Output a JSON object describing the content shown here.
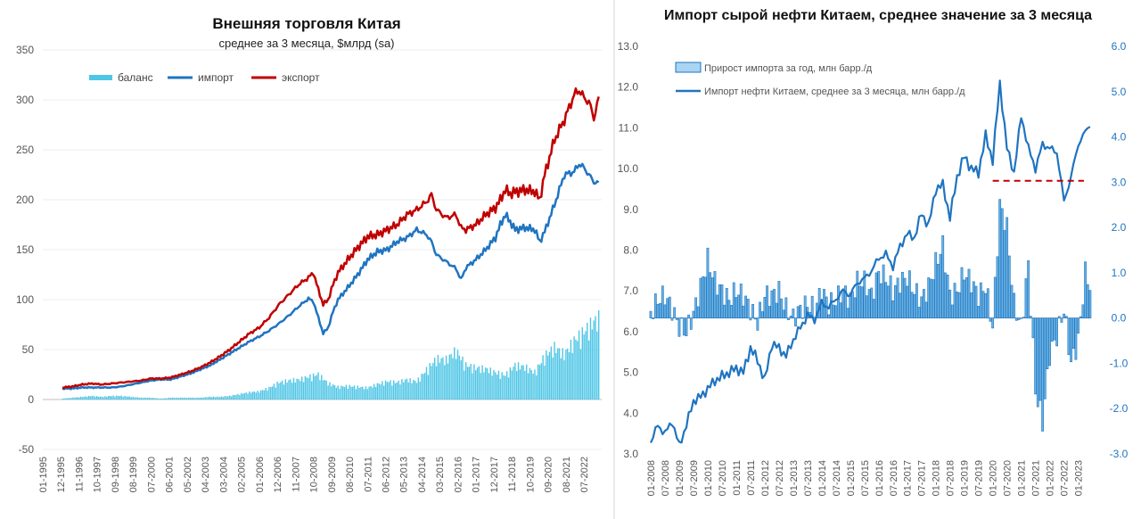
{
  "chart_data": [
    {
      "type": "line",
      "title": "Внешняя торговля Китая",
      "subtitle": "среднее за 3 месяца, $млрд (sa)",
      "xlabel": "",
      "ylabel": "",
      "ylim": [
        -50,
        350
      ],
      "yticks": [
        -50,
        0,
        50,
        100,
        150,
        200,
        250,
        300,
        350
      ],
      "xlim": [
        1995.0,
        2023.4
      ],
      "x_tick_labels": [
        "01-1995",
        "12-1995",
        "11-1996",
        "10-1997",
        "09-1998",
        "08-1999",
        "07-2000",
        "06-2001",
        "05-2002",
        "04-2003",
        "03-2004",
        "02-2005",
        "01-2006",
        "12-2006",
        "11-2007",
        "10-2008",
        "09-2009",
        "08-2010",
        "07-2011",
        "06-2012",
        "05-2013",
        "04-2014",
        "03-2015",
        "02-2016",
        "01-2017",
        "12-2017",
        "11-2018",
        "10-2019",
        "09-2020",
        "08-2021",
        "07-2022"
      ],
      "x_tick_values": [
        1995.0,
        1995.917,
        1996.833,
        1997.75,
        1998.667,
        1999.583,
        2000.5,
        2001.417,
        2002.333,
        2003.25,
        2004.167,
        2005.083,
        2006.0,
        2006.917,
        2007.833,
        2008.75,
        2009.667,
        2010.583,
        2011.5,
        2012.417,
        2013.333,
        2014.25,
        2015.167,
        2016.083,
        2017.0,
        2017.917,
        2018.833,
        2019.75,
        2020.667,
        2021.583,
        2022.5
      ],
      "legend": {
        "position": "top-left",
        "entries": [
          "баланс",
          "импорт",
          "экспорт"
        ]
      },
      "series": [
        {
          "name": "импорт",
          "color": "#1f74c0",
          "x": [
            1996.0,
            1996.5,
            1997.0,
            1997.5,
            1998.0,
            1998.5,
            1999.0,
            1999.5,
            2000.0,
            2000.5,
            2001.0,
            2001.5,
            2002.0,
            2002.5,
            2003.0,
            2003.5,
            2004.0,
            2004.5,
            2005.0,
            2005.5,
            2006.0,
            2006.5,
            2007.0,
            2007.5,
            2008.0,
            2008.5,
            2008.75,
            2009.0,
            2009.25,
            2009.5,
            2009.75,
            2010.0,
            2010.5,
            2011.0,
            2011.5,
            2012.0,
            2012.5,
            2013.0,
            2013.5,
            2014.0,
            2014.5,
            2014.75,
            2015.0,
            2015.5,
            2016.0,
            2016.25,
            2016.5,
            2017.0,
            2017.5,
            2018.0,
            2018.25,
            2018.5,
            2018.75,
            2019.0,
            2019.5,
            2020.0,
            2020.25,
            2020.5,
            2021.0,
            2021.5,
            2022.0,
            2022.25,
            2022.5,
            2022.75,
            2023.0,
            2023.3
          ],
          "values": [
            11,
            11,
            12,
            12,
            12,
            12,
            13,
            15,
            17,
            19,
            20,
            20,
            23,
            26,
            30,
            34,
            40,
            46,
            52,
            58,
            63,
            69,
            76,
            84,
            93,
            101,
            98,
            82,
            66,
            72,
            88,
            100,
            112,
            125,
            140,
            148,
            150,
            158,
            162,
            170,
            165,
            158,
            145,
            138,
            131,
            120,
            132,
            140,
            150,
            162,
            175,
            185,
            178,
            170,
            172,
            170,
            158,
            168,
            195,
            225,
            228,
            236,
            232,
            225,
            218,
            216
          ]
        },
        {
          "name": "экспорт",
          "color": "#c00000",
          "x": [
            1996.0,
            1996.5,
            1997.0,
            1997.5,
            1998.0,
            1998.5,
            1999.0,
            1999.5,
            2000.0,
            2000.5,
            2001.0,
            2001.5,
            2002.0,
            2002.5,
            2003.0,
            2003.5,
            2004.0,
            2004.5,
            2005.0,
            2005.5,
            2006.0,
            2006.5,
            2007.0,
            2007.5,
            2008.0,
            2008.5,
            2008.75,
            2009.0,
            2009.25,
            2009.5,
            2009.75,
            2010.0,
            2010.5,
            2011.0,
            2011.5,
            2012.0,
            2012.5,
            2013.0,
            2013.5,
            2014.0,
            2014.5,
            2014.75,
            2015.0,
            2015.5,
            2016.0,
            2016.25,
            2016.5,
            2017.0,
            2017.5,
            2018.0,
            2018.25,
            2018.5,
            2018.75,
            2019.0,
            2019.5,
            2020.0,
            2020.25,
            2020.5,
            2021.0,
            2021.5,
            2022.0,
            2022.25,
            2022.5,
            2022.75,
            2023.0,
            2023.3
          ],
          "values": [
            12,
            13,
            15,
            16,
            15,
            16,
            17,
            18,
            19,
            21,
            21,
            22,
            25,
            28,
            32,
            37,
            43,
            50,
            58,
            66,
            72,
            82,
            95,
            105,
            115,
            122,
            127,
            110,
            95,
            100,
            115,
            127,
            140,
            152,
            163,
            165,
            170,
            175,
            185,
            190,
            198,
            205,
            190,
            182,
            185,
            172,
            170,
            175,
            185,
            192,
            200,
            210,
            206,
            208,
            210,
            208,
            200,
            225,
            260,
            280,
            305,
            310,
            302,
            298,
            282,
            305
          ]
        },
        {
          "name": "баланс",
          "color": "#4ec6e6",
          "x": [
            1996.0,
            1996.5,
            1997.0,
            1997.5,
            1998.0,
            1998.5,
            1999.0,
            1999.5,
            2000.0,
            2000.5,
            2001.0,
            2001.5,
            2002.0,
            2002.5,
            2003.0,
            2003.5,
            2004.0,
            2004.5,
            2005.0,
            2005.5,
            2006.0,
            2006.5,
            2007.0,
            2007.5,
            2008.0,
            2008.5,
            2009.0,
            2009.5,
            2010.0,
            2010.5,
            2011.0,
            2011.5,
            2012.0,
            2012.5,
            2013.0,
            2013.5,
            2014.0,
            2014.5,
            2015.0,
            2015.5,
            2016.0,
            2016.5,
            2017.0,
            2017.5,
            2018.0,
            2018.5,
            2019.0,
            2019.5,
            2020.0,
            2020.5,
            2021.0,
            2021.5,
            2022.0,
            2022.5,
            2023.0,
            2023.3
          ],
          "values": [
            1,
            2,
            3,
            4,
            3,
            4,
            4,
            3,
            2,
            2,
            1,
            2,
            2,
            2,
            2,
            3,
            3,
            4,
            6,
            8,
            9,
            13,
            19,
            21,
            22,
            25,
            28,
            18,
            14,
            15,
            14,
            13,
            17,
            20,
            19,
            22,
            20,
            33,
            45,
            44,
            54,
            38,
            35,
            34,
            30,
            27,
            38,
            36,
            30,
            48,
            58,
            50,
            65,
            75,
            86,
            90
          ]
        }
      ]
    },
    {
      "type": "bar+line",
      "title": "Импорт сырой нефти Китаем, среднее значение за 3 месяца",
      "xlabel": "",
      "ylabel": "",
      "ylim_left": [
        3.0,
        13.0
      ],
      "yticks_left": [
        "3.0",
        "4.0",
        "5.0",
        "6.0",
        "7.0",
        "8.0",
        "9.0",
        "10.0",
        "11.0",
        "12.0",
        "13.0"
      ],
      "ylim_right": [
        -3.0,
        6.0
      ],
      "yticks_right": [
        "-3.0",
        "-2.0",
        "-1.0",
        "0.0",
        "1.0",
        "2.0",
        "3.0",
        "4.0",
        "5.0",
        "6.0"
      ],
      "xlim": [
        2008.0,
        2023.42
      ],
      "x_tick_labels": [
        "01-2008",
        "07-2008",
        "01-2009",
        "07-2009",
        "01-2010",
        "07-2010",
        "01-2011",
        "07-2011",
        "01-2012",
        "07-2012",
        "01-2013",
        "07-2013",
        "01-2014",
        "07-2014",
        "01-2015",
        "07-2015",
        "01-2016",
        "07-2016",
        "01-2017",
        "07-2017",
        "01-2018",
        "07-2018",
        "01-2019",
        "07-2019",
        "01-2020",
        "07-2020",
        "01-2021",
        "07-2021",
        "01-2022",
        "07-2022",
        "01-2023"
      ],
      "x_tick_values": [
        2008.0,
        2008.5,
        2009.0,
        2009.5,
        2010.0,
        2010.5,
        2011.0,
        2011.5,
        2012.0,
        2012.5,
        2013.0,
        2013.5,
        2014.0,
        2014.5,
        2015.0,
        2015.5,
        2016.0,
        2016.5,
        2017.0,
        2017.5,
        2018.0,
        2018.5,
        2019.0,
        2019.5,
        2020.0,
        2020.5,
        2021.0,
        2021.5,
        2022.0,
        2022.5,
        2023.0
      ],
      "legend": {
        "position": "top-left",
        "entries": [
          "Прирост импорта за год, млн барр./д",
          "Импорт нефти Китаем, среднее за 3 месяца, млн барр./д"
        ]
      },
      "reference_line": {
        "axis": "left",
        "value": 9.7,
        "x_from": 2020.0,
        "x_to": 2023.2,
        "color": "#c00000",
        "style": "dashed"
      },
      "series": [
        {
          "name": "Импорт нефти Китаем, среднее за 3 месяца, млн барр./д",
          "axis": "left",
          "color": "#1f74c0",
          "x": [
            2008.0,
            2008.25,
            2008.5,
            2008.75,
            2009.0,
            2009.25,
            2009.5,
            2009.75,
            2010.0,
            2010.25,
            2010.5,
            2010.75,
            2011.0,
            2011.25,
            2011.5,
            2011.75,
            2012.0,
            2012.25,
            2012.5,
            2012.75,
            2013.0,
            2013.25,
            2013.5,
            2013.75,
            2014.0,
            2014.25,
            2014.5,
            2014.75,
            2015.0,
            2015.25,
            2015.5,
            2015.75,
            2016.0,
            2016.25,
            2016.5,
            2016.75,
            2017.0,
            2017.25,
            2017.5,
            2017.75,
            2018.0,
            2018.25,
            2018.5,
            2018.75,
            2019.0,
            2019.25,
            2019.5,
            2019.75,
            2020.0,
            2020.25,
            2020.5,
            2020.75,
            2021.0,
            2021.25,
            2021.5,
            2021.75,
            2022.0,
            2022.25,
            2022.5,
            2022.75,
            2023.0,
            2023.25,
            2023.42
          ],
          "values": [
            3.3,
            3.7,
            3.5,
            3.8,
            3.2,
            3.7,
            4.3,
            4.4,
            4.6,
            4.8,
            4.9,
            5.0,
            5.1,
            5.0,
            5.6,
            5.3,
            4.8,
            5.7,
            5.6,
            5.4,
            5.8,
            6.1,
            6.4,
            6.3,
            6.7,
            6.6,
            6.8,
            7.0,
            6.9,
            7.2,
            7.3,
            7.5,
            7.8,
            7.9,
            7.6,
            8.1,
            8.4,
            8.3,
            8.9,
            8.6,
            9.5,
            9.6,
            8.8,
            9.8,
            10.3,
            10.0,
            9.9,
            10.8,
            10.2,
            12.1,
            10.5,
            9.9,
            11.3,
            10.5,
            10.0,
            10.6,
            10.5,
            10.4,
            9.2,
            9.8,
            10.6,
            10.9,
            11.1
          ]
        },
        {
          "name": "Прирост импорта за год, млн барр./д",
          "axis": "right",
          "color": "#6cb4e4",
          "x": [
            2008.0,
            2008.25,
            2008.5,
            2008.75,
            2009.0,
            2009.25,
            2009.5,
            2009.75,
            2010.0,
            2010.25,
            2010.5,
            2010.75,
            2011.0,
            2011.25,
            2011.5,
            2011.75,
            2012.0,
            2012.25,
            2012.5,
            2012.75,
            2013.0,
            2013.25,
            2013.5,
            2013.75,
            2014.0,
            2014.25,
            2014.5,
            2014.75,
            2015.0,
            2015.25,
            2015.5,
            2015.75,
            2016.0,
            2016.25,
            2016.5,
            2016.75,
            2017.0,
            2017.25,
            2017.5,
            2017.75,
            2018.0,
            2018.25,
            2018.5,
            2018.75,
            2019.0,
            2019.25,
            2019.5,
            2019.75,
            2020.0,
            2020.25,
            2020.5,
            2020.75,
            2021.0,
            2021.25,
            2021.5,
            2021.75,
            2022.0,
            2022.25,
            2022.5,
            2022.75,
            2023.0,
            2023.25,
            2023.42
          ],
          "values": [
            0.1,
            0.4,
            0.5,
            0.2,
            -0.2,
            -0.3,
            0.1,
            0.7,
            1.3,
            0.8,
            0.6,
            0.4,
            0.6,
            0.5,
            0.2,
            -0.1,
            0.5,
            0.5,
            0.6,
            0.2,
            0.0,
            0.2,
            0.3,
            0.2,
            0.6,
            0.3,
            0.4,
            0.6,
            0.4,
            0.8,
            0.8,
            0.5,
            1.0,
            0.9,
            0.6,
            0.8,
            0.9,
            0.6,
            0.4,
            0.7,
            1.2,
            1.6,
            0.5,
            0.6,
            1.0,
            0.8,
            0.5,
            0.7,
            -0.2,
            2.5,
            2.0,
            0.3,
            -0.2,
            1.2,
            -1.6,
            -2.3,
            -0.8,
            -0.4,
            0.2,
            -1.0,
            -0.5,
            1.0,
            0.7
          ]
        }
      ]
    }
  ]
}
